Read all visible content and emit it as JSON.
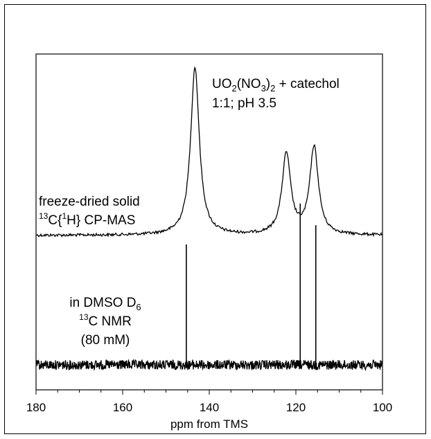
{
  "chart_data": {
    "type": "line",
    "xlabel": "ppm from TMS",
    "xlim": [
      180,
      100
    ],
    "x_reversed": true,
    "x_ticks": [
      "180",
      "160",
      "140",
      "120",
      "100"
    ],
    "y_ticks_shown": false,
    "grid": false,
    "series": [
      {
        "label_lines": [
          "freeze-dried solid",
          "13C{1H} CP-MAS"
        ],
        "kind": "lorentzian-peaks",
        "peaks": [
          {
            "ppm": 143.3,
            "height": 1.0
          },
          {
            "ppm": 122.2,
            "height": 0.48
          },
          {
            "ppm": 115.8,
            "height": 0.52
          }
        ]
      },
      {
        "label_lines": [
          "in DMSO D6",
          "13C NMR",
          "(80 mM)"
        ],
        "kind": "stick-peaks",
        "peaks": [
          {
            "ppm": 145.3,
            "height": 1.0
          },
          {
            "ppm": 119.0,
            "height": 1.34
          },
          {
            "ppm": 115.4,
            "height": 1.16
          }
        ]
      }
    ],
    "annotation_lines": [
      "UO2(NO3)2 + catechol",
      "1:1;  pH 3.5"
    ]
  }
}
